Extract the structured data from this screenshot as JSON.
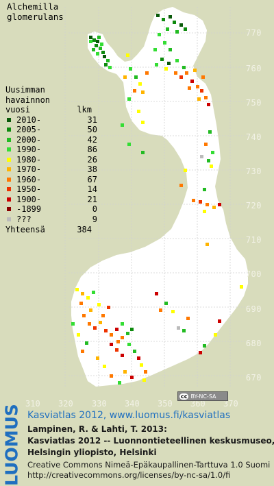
{
  "title": {
    "line1": "Alchemilla",
    "line2": "glomerulans"
  },
  "legend": {
    "header": [
      "Uusimman",
      "havainnon",
      "vuosi"
    ],
    "count_header": "lkm",
    "entries": [
      {
        "label": "2010-",
        "count": "31",
        "color": "#0a5a0a"
      },
      {
        "label": "2005-",
        "count": "50",
        "color": "#0d8a0d"
      },
      {
        "label": "2000-",
        "count": "42",
        "color": "#22bb22"
      },
      {
        "label": "1990-",
        "count": "86",
        "color": "#33dd33"
      },
      {
        "label": "1980-",
        "count": "26",
        "color": "#ffff00"
      },
      {
        "label": "1970-",
        "count": "38",
        "color": "#ffb400"
      },
      {
        "label": "1960-",
        "count": "67",
        "color": "#ff7800"
      },
      {
        "label": "1950-",
        "count": "14",
        "color": "#ee3300"
      },
      {
        "label": "1900-",
        "count": "21",
        "color": "#cc0000"
      },
      {
        "label": "-1899",
        "count": "0",
        "color": "#8a0000"
      },
      {
        "label": "???",
        "count": "9",
        "color": "#bbbbbb"
      }
    ],
    "total_label": "Yhteensä",
    "total_count": "384"
  },
  "axis": {
    "y_ticks": [
      "770",
      "760",
      "750",
      "740",
      "730",
      "720",
      "710",
      "700",
      "690",
      "680",
      "670"
    ],
    "x_ticks": [
      "310",
      "320",
      "330",
      "340",
      "350",
      "360",
      "370"
    ]
  },
  "cc_badge": "BY-NC-SA",
  "cc_mark": "cc",
  "logo": "LUOMUS",
  "site_line": "Kasviatlas 2012, www.luomus.fi/kasviatlas",
  "citation": [
    "Lampinen, R. & Lahti, T. 2013:",
    "Kasviatlas 2012 -- Luonnontieteellinen keskusmuseo,",
    "Helsingin yliopisto, Helsinki"
  ],
  "license": [
    "Creative Commons Nimeä-Epäkaupallinen-Tarttuva 1.0 Suomi",
    "http://creativecommons.org/licenses/by-nc-sa/1.0/fi"
  ],
  "colors": {
    "background": "#d8dcbc",
    "land": "#ffffff",
    "grid": "#d6d6d6",
    "accent": "#1f6fbf"
  }
}
